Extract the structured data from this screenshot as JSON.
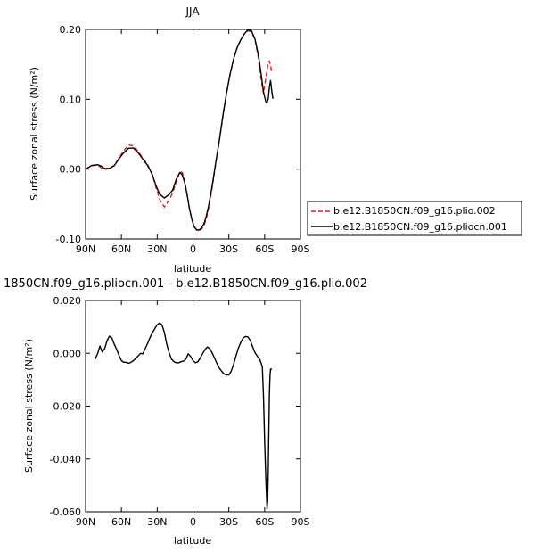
{
  "chart_data": [
    {
      "type": "line",
      "title": "JJA",
      "xlabel": "latitude",
      "ylabel": "Surface zonal stress (N/m²)",
      "xlim": [
        90,
        -90
      ],
      "ylim": [
        -0.1,
        0.2
      ],
      "x_ticks": [
        "90N",
        "60N",
        "30N",
        "0",
        "30S",
        "60S",
        "90S"
      ],
      "y_ticks": [
        "-0.10",
        "0.00",
        "0.10",
        "0.20"
      ],
      "legend_position": "right",
      "series": [
        {
          "name": "b.e12.B1850CN.f09_g16.plio.002",
          "color": "#e41a1c",
          "dash": "dashed",
          "x": [
            90,
            85,
            80,
            77,
            74,
            70,
            66,
            62,
            58,
            54,
            50,
            46,
            42,
            38,
            34,
            31,
            28,
            24,
            20,
            17,
            14,
            11,
            9,
            7,
            5,
            3,
            1,
            -1,
            -3,
            -5,
            -7,
            -9,
            -11,
            -13,
            -15,
            -17,
            -19,
            -22,
            -25,
            -28,
            -31,
            -34,
            -37,
            -40,
            -43,
            -46,
            -49,
            -52,
            -55,
            -57,
            -59,
            -61,
            -63,
            -64,
            -65,
            -66
          ],
          "y": [
            0.0,
            0.0048,
            0.0058,
            0.0022,
            -0.0006,
            0.0008,
            0.0053,
            0.0158,
            0.0264,
            0.0346,
            0.0334,
            0.0256,
            0.0158,
            0.0064,
            -0.0084,
            -0.0264,
            -0.0434,
            -0.0543,
            -0.0445,
            -0.0338,
            -0.0182,
            -0.0036,
            -0.0046,
            -0.0174,
            -0.0354,
            -0.0564,
            -0.0718,
            -0.0818,
            -0.0868,
            -0.0879,
            -0.0862,
            -0.0818,
            -0.0718,
            -0.0564,
            -0.0372,
            -0.0156,
            0.0076,
            0.0398,
            0.0748,
            0.1072,
            0.1352,
            0.1572,
            0.1738,
            0.1852,
            0.1938,
            0.1978,
            0.1968,
            0.1848,
            0.1572,
            0.1288,
            0.1082,
            0.1308,
            0.1528,
            0.1548,
            0.1478,
            0.1378
          ]
        },
        {
          "name": "b.e12.B1850CN.f09_g16.pliocn.001",
          "color": "#000000",
          "dash": "solid",
          "x": [
            90,
            85,
            80,
            77,
            74,
            70,
            66,
            62,
            58,
            54,
            50,
            46,
            42,
            38,
            34,
            31,
            28,
            24,
            20,
            17,
            14,
            11,
            9,
            7,
            5,
            3,
            1,
            -1,
            -3,
            -5,
            -7,
            -9,
            -11,
            -13,
            -15,
            -17,
            -19,
            -22,
            -25,
            -28,
            -31,
            -34,
            -37,
            -40,
            -43,
            -46,
            -49,
            -52,
            -55,
            -57,
            -59,
            -61,
            -62,
            -63,
            -64,
            -65,
            -66,
            -67
          ],
          "y": [
            0.0,
            0.0052,
            0.0064,
            0.0044,
            0.001,
            0.0012,
            0.0048,
            0.0148,
            0.0234,
            0.0298,
            0.0304,
            0.0236,
            0.0142,
            0.0052,
            -0.0084,
            -0.0238,
            -0.0358,
            -0.0414,
            -0.0364,
            -0.0298,
            -0.0144,
            -0.0046,
            -0.0082,
            -0.0188,
            -0.0362,
            -0.0566,
            -0.0722,
            -0.0826,
            -0.0872,
            -0.0872,
            -0.0842,
            -0.0788,
            -0.0684,
            -0.0532,
            -0.0344,
            -0.013,
            0.0088,
            0.0412,
            0.0768,
            0.1082,
            0.1358,
            0.1578,
            0.1742,
            0.1852,
            0.1938,
            0.1996,
            0.1978,
            0.1858,
            0.1612,
            0.1368,
            0.1108,
            0.0962,
            0.0944,
            0.1012,
            0.1178,
            0.1268,
            0.1108,
            0.1008
          ]
        }
      ]
    },
    {
      "type": "line",
      "title": "1850CN.f09_g16.pliocn.001 - b.e12.B1850CN.f09_g16.plio.002",
      "xlabel": "latitude",
      "ylabel": "Surface zonal stress (N/m²)",
      "xlim": [
        90,
        -90
      ],
      "ylim": [
        -0.06,
        0.02
      ],
      "x_ticks": [
        "90N",
        "60N",
        "30N",
        "0",
        "30S",
        "60S",
        "90S"
      ],
      "y_ticks": [
        "-0.060",
        "-0.040",
        "-0.020",
        "0.000",
        "0.020"
      ],
      "series": [
        {
          "color": "#000000",
          "dash": "solid",
          "x": [
            82,
            80,
            78,
            76,
            74,
            72,
            70,
            68,
            66,
            64,
            62,
            60,
            58,
            56,
            54,
            52,
            50,
            48,
            46,
            44,
            42,
            40,
            38,
            36,
            34,
            32,
            30,
            28,
            26,
            24,
            22,
            20,
            18,
            16,
            14,
            12,
            10,
            8,
            6,
            4,
            2,
            0,
            -2,
            -4,
            -6,
            -8,
            -10,
            -12,
            -14,
            -16,
            -18,
            -20,
            -22,
            -24,
            -26,
            -28,
            -30,
            -32,
            -34,
            -36,
            -38,
            -40,
            -42,
            -44,
            -46,
            -48,
            -50,
            -52,
            -54,
            -56,
            -58,
            -59,
            -60,
            -61,
            -62,
            -62.5,
            -63,
            -63.5,
            -64,
            -64.5,
            -65,
            -65.5,
            -66
          ],
          "y": [
            -0.0022,
            -0.0002,
            0.0028,
            0.0005,
            0.0018,
            0.0048,
            0.0065,
            0.0058,
            0.0035,
            0.0015,
            -0.0008,
            -0.0028,
            -0.0034,
            -0.0034,
            -0.0038,
            -0.0034,
            -0.0028,
            -0.002,
            -0.001,
            0.0,
            -0.0002,
            0.0018,
            0.0038,
            0.006,
            0.0078,
            0.0094,
            0.0108,
            0.0115,
            0.0108,
            0.0078,
            0.0035,
            0.0002,
            -0.0022,
            -0.0032,
            -0.0036,
            -0.0036,
            -0.0032,
            -0.003,
            -0.0022,
            -0.0002,
            -0.0012,
            -0.0028,
            -0.0036,
            -0.0032,
            -0.0018,
            -0.0002,
            0.0014,
            0.0024,
            0.0018,
            0.0002,
            -0.0018,
            -0.0038,
            -0.0056,
            -0.0068,
            -0.0078,
            -0.0082,
            -0.0082,
            -0.0068,
            -0.0042,
            -0.001,
            0.002,
            0.0042,
            0.0058,
            0.0064,
            0.0062,
            0.0048,
            0.0024,
            0.0002,
            -0.0012,
            -0.0024,
            -0.005,
            -0.016,
            -0.033,
            -0.048,
            -0.059,
            -0.056,
            -0.044,
            -0.03,
            -0.015,
            -0.008,
            -0.006,
            -0.006,
            -0.006
          ]
        }
      ]
    }
  ]
}
